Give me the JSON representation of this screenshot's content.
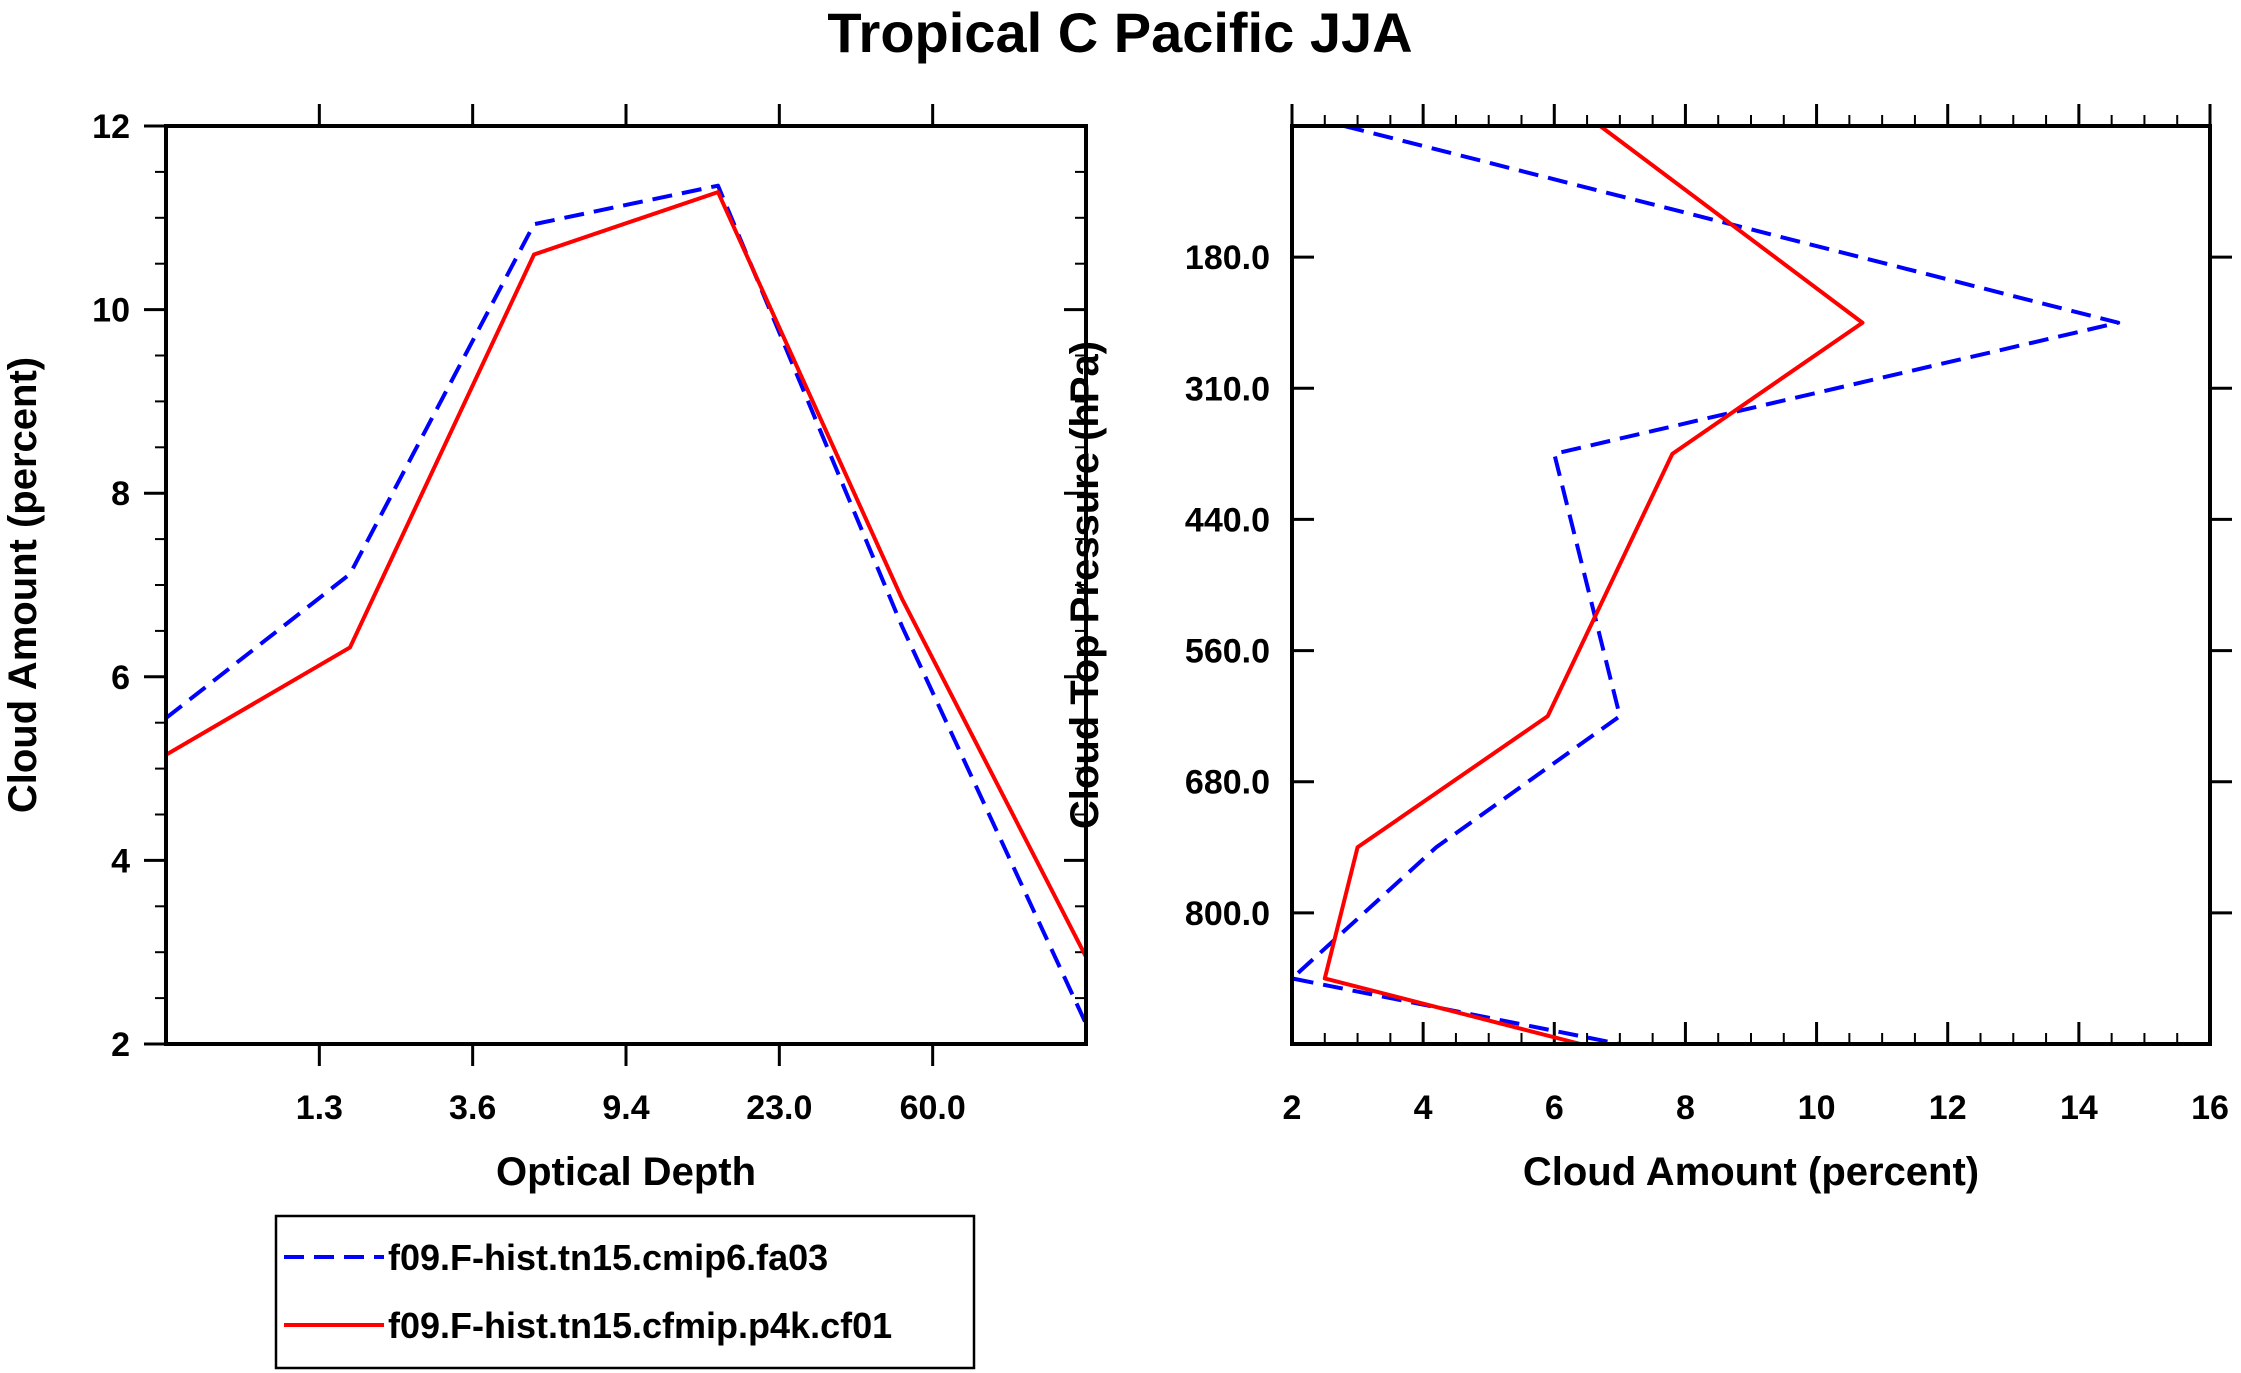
{
  "title": "Tropical C Pacific JJA",
  "chart_data": [
    {
      "type": "line",
      "xlabel": "Optical Depth",
      "ylabel": "Cloud Amount (percent)",
      "x_tick_labels": [
        "1.3",
        "3.6",
        "9.4",
        "23.0",
        "60.0"
      ],
      "y_ticks": [
        2,
        4,
        6,
        8,
        10,
        12
      ],
      "ylim": [
        2,
        12
      ],
      "x_bins": [
        0,
        1,
        2,
        3,
        4,
        5,
        6
      ],
      "series": [
        {
          "name": "f09.F-hist.tn15.cmip6.fa03",
          "color": "#0000ff",
          "dash": "dashed",
          "values": [
            5.55,
            7.12,
            10.93,
            11.35,
            6.55,
            2.22
          ]
        },
        {
          "name": "f09.F-hist.tn15.cfmip.p4k.cf01",
          "color": "#ff0000",
          "dash": "solid",
          "values": [
            5.15,
            6.32,
            10.6,
            11.28,
            6.85,
            2.95
          ]
        }
      ]
    },
    {
      "type": "line",
      "xlabel": "Cloud Amount (percent)",
      "ylabel": "Cloud Top Pressure (hPa)",
      "x_ticks": [
        2,
        4,
        6,
        8,
        10,
        12,
        14,
        16
      ],
      "xlim": [
        2,
        16
      ],
      "y_tick_labels": [
        "180.0",
        "310.0",
        "440.0",
        "560.0",
        "680.0",
        "800.0"
      ],
      "y_levels": [
        0,
        1,
        2,
        3,
        4,
        5,
        6,
        7
      ],
      "series": [
        {
          "name": "f09.F-hist.tn15.cmip6.fa03",
          "color": "#0000ff",
          "dash": "dashed",
          "values": [
            2.8,
            14.6,
            6.0,
            7.0,
            4.2,
            2.0,
            7.0
          ]
        },
        {
          "name": "f09.F-hist.tn15.cfmip.p4k.cf01",
          "color": "#ff0000",
          "dash": "solid",
          "values": [
            6.7,
            10.7,
            7.8,
            5.9,
            3.0,
            2.5,
            6.4
          ]
        }
      ]
    }
  ],
  "legend": [
    {
      "label": "f09.F-hist.tn15.cmip6.fa03",
      "color": "#0000ff",
      "dash": "dashed"
    },
    {
      "label": "f09.F-hist.tn15.cfmip.p4k.cf01",
      "color": "#ff0000",
      "dash": "solid"
    }
  ]
}
